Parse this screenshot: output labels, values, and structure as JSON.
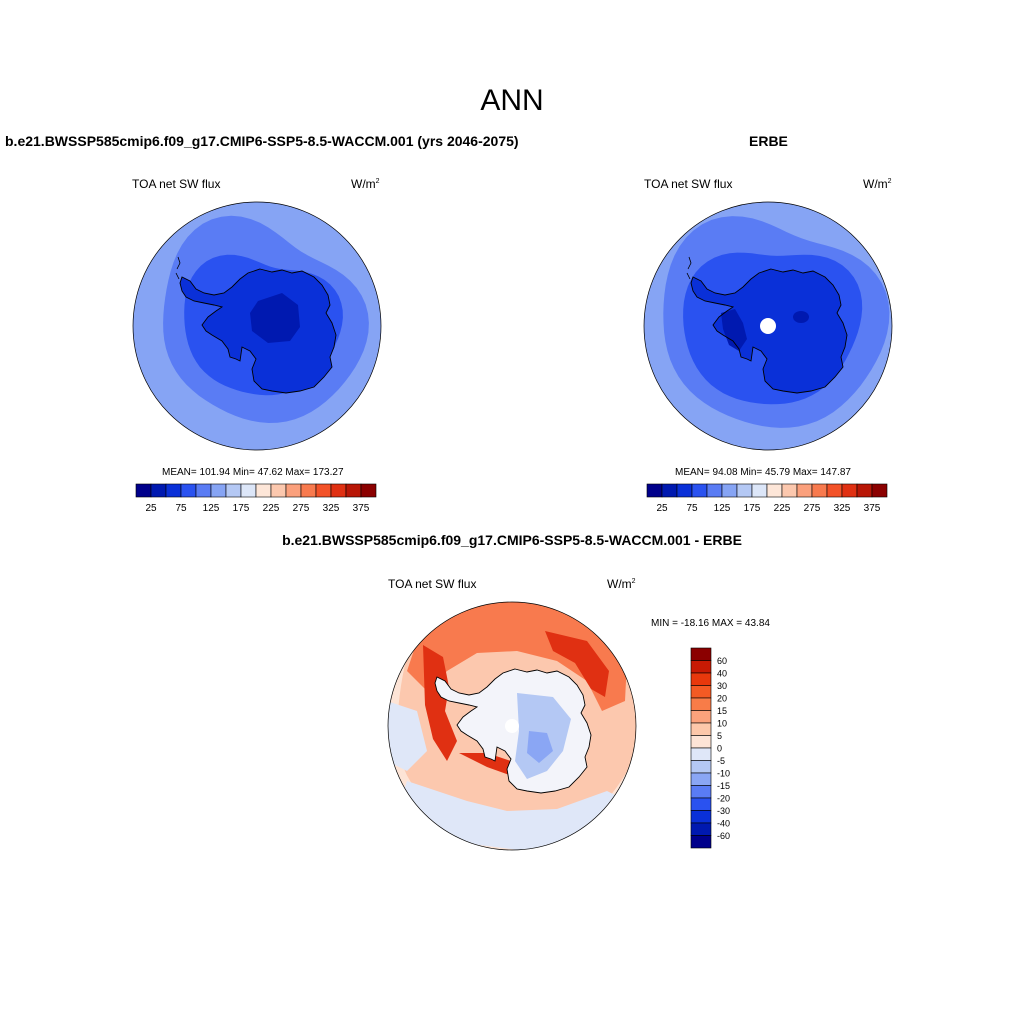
{
  "figure": {
    "title": "ANN"
  },
  "panels": [
    {
      "title": "b.e21.BWSSP585cmip6.f09_g17.CMIP6-SSP5-8.5-WACCM.001 (yrs 2046-2075)",
      "variable": "TOA net SW flux",
      "units": "W/m",
      "units_sup": "2",
      "stats": "MEAN= 101.94  Min=  47.62  Max= 173.27"
    },
    {
      "title": "ERBE",
      "variable": "TOA net SW flux",
      "units": "W/m",
      "units_sup": "2",
      "stats": "MEAN=  94.08  Min=  45.79  Max= 147.87"
    },
    {
      "title": "b.e21.BWSSP585cmip6.f09_g17.CMIP6-SSP5-8.5-WACCM.001 - ERBE",
      "variable": "TOA net SW flux",
      "units": "W/m",
      "units_sup": "2",
      "stats": "MIN = -18.16 MAX =  43.84"
    }
  ],
  "abs_colorbar": {
    "labels": [
      "25",
      "75",
      "125",
      "175",
      "225",
      "275",
      "325",
      "375"
    ],
    "colors": [
      "#00008b",
      "#0019b0",
      "#0a30d8",
      "#2a52f0",
      "#5a7cf4",
      "#86a4f4",
      "#b4c8f4",
      "#dce6f8",
      "#fde6d8",
      "#fcc8ae",
      "#fba07c",
      "#f87a4e",
      "#f35228",
      "#e03012",
      "#b81606",
      "#8b0000"
    ]
  },
  "diff_colorbar": {
    "labels": [
      "60",
      "40",
      "30",
      "20",
      "15",
      "10",
      "5",
      "0",
      "-5",
      "-10",
      "-15",
      "-20",
      "-30",
      "-40",
      "-60"
    ],
    "colors": [
      "#8b0000",
      "#c81a04",
      "#e8380c",
      "#f45a24",
      "#f87c48",
      "#fba27c",
      "#fdc8aa",
      "#fde4d6",
      "#dfe7f8",
      "#b4c8f4",
      "#8aa6f4",
      "#5a7cf4",
      "#2a52f0",
      "#0a30d8",
      "#0019b0",
      "#00008b"
    ]
  },
  "map_colors": {
    "ocean_outer": "#86a4f4",
    "ocean_mid": "#5a7cf4",
    "ocean_inner": "#2a52f0",
    "continent": "#0a30d8",
    "plateau": "#0019b0",
    "diff_neutral": "#f3f4fa",
    "diff_pos1": "#fde4d6",
    "diff_pos2": "#fcc8ae",
    "diff_pos3": "#f87a4e",
    "diff_pos4": "#e03012",
    "diff_neg1": "#dfe7f8",
    "diff_neg2": "#b4c8f4",
    "diff_neg3": "#8aa6f4"
  }
}
